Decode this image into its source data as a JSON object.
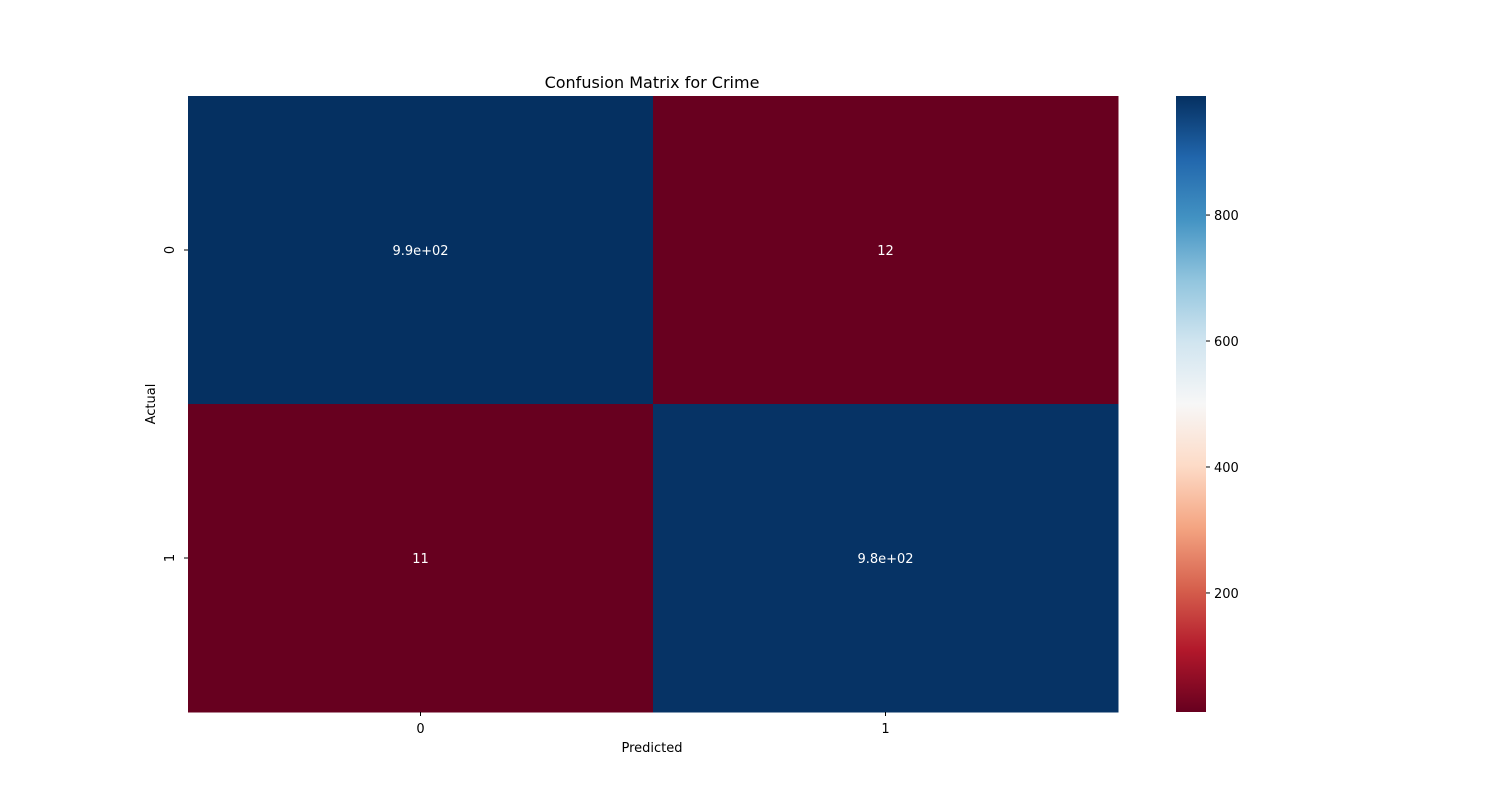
{
  "chart_data": {
    "type": "heatmap",
    "title": "Confusion Matrix for Crime",
    "xlabel": "Predicted",
    "ylabel": "Actual",
    "x_categories": [
      "0",
      "1"
    ],
    "y_categories": [
      "0",
      "1"
    ],
    "values": [
      [
        989,
        12
      ],
      [
        11,
        984
      ]
    ],
    "annotations": [
      [
        "9.9e+02",
        "12"
      ],
      [
        "11",
        "9.8e+02"
      ]
    ],
    "colormap": "RdBu",
    "color_range": [
      11,
      989
    ],
    "colorbar_ticks": [
      "200",
      "400",
      "600",
      "800"
    ],
    "colorbar_tick_values": [
      200,
      400,
      600,
      800
    ],
    "colors": {
      "low": "#67001f",
      "high": "#053061",
      "annotation_text": "#ffffff"
    }
  }
}
